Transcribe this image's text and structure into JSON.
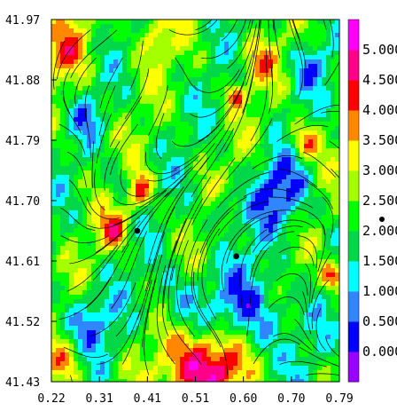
{
  "chart_data": {
    "type": "heatmap",
    "subtype": "filled contour with streamlines",
    "title": "",
    "xlabel": "",
    "ylabel": "",
    "xlim": [
      0.22,
      0.79
    ],
    "ylim": [
      41.43,
      41.97
    ],
    "x_ticks": [
      "0.22",
      "0.31",
      "0.41",
      "0.51",
      "0.60",
      "0.70",
      "0.79"
    ],
    "y_ticks": [
      "41.43",
      "41.52",
      "41.61",
      "41.70",
      "41.79",
      "41.88",
      "41.97"
    ],
    "colorbar": {
      "levels": [
        "0.000",
        "0.500",
        "1.000",
        "1.500",
        "2.000",
        "2.500",
        "3.000",
        "3.500",
        "4.000",
        "4.500",
        "5.000"
      ],
      "range": [
        -0.25,
        5.75
      ],
      "colors": [
        "#9a00ff",
        "#0000ff",
        "#2f86ff",
        "#00ffff",
        "#00d84a",
        "#00ff00",
        "#a4ff00",
        "#ffff00",
        "#ff8800",
        "#ff0000",
        "#ff0088",
        "#ff00ff"
      ]
    },
    "markers": [
      {
        "x": 0.39,
        "y": 41.655
      },
      {
        "x": 0.586,
        "y": 41.617
      }
    ],
    "legend_marker": "•",
    "dominant_levels": "mostly 2.0–3.5 (green/yellow); high values (4.5–5.5) at bottom center, low values (0.5–1.0) in scattered patches",
    "grid": false
  }
}
